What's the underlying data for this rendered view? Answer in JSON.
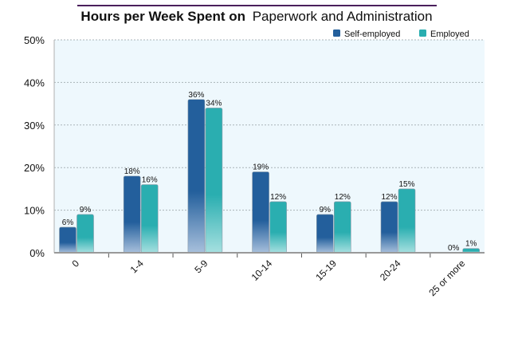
{
  "chart_data": {
    "type": "bar",
    "title_bold": "Hours per Week Spent on",
    "title_regular": "Paperwork and Administration",
    "categories": [
      "0",
      "1-4",
      "5-9",
      "10-14",
      "15-19",
      "20-24",
      "25 or more"
    ],
    "series": [
      {
        "name": "Self-employed",
        "color": "#235f9c",
        "values": [
          6,
          18,
          36,
          19,
          9,
          12,
          0
        ],
        "labels": [
          "6%",
          "18%",
          "36%",
          "19%",
          "9%",
          "12%",
          "0%"
        ]
      },
      {
        "name": "Employed",
        "color": "#2aaeb0",
        "values": [
          9,
          16,
          34,
          12,
          12,
          15,
          1
        ],
        "labels": [
          "9%",
          "16%",
          "34%",
          "12%",
          "12%",
          "15%",
          "1%"
        ]
      }
    ],
    "yticks": [
      "0%",
      "10%",
      "20%",
      "30%",
      "40%",
      "50%"
    ],
    "ylim": [
      0,
      50
    ],
    "xlabel": "",
    "ylabel": "",
    "grid": true,
    "legend_position": "top-right",
    "accent_rule_color": "#4a1f5c"
  }
}
